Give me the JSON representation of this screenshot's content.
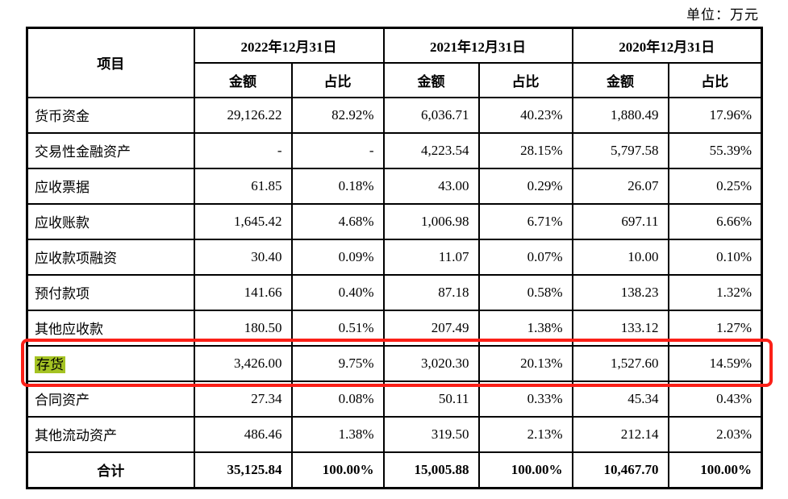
{
  "unit_label": "单位：万元",
  "table": {
    "header": {
      "item_col": "项目",
      "date_groups": [
        {
          "date": "2022年12月31日",
          "amount_label": "金额",
          "ratio_label": "占比"
        },
        {
          "date": "2021年12月31日",
          "amount_label": "金额",
          "ratio_label": "占比"
        },
        {
          "date": "2020年12月31日",
          "amount_label": "金额",
          "ratio_label": "占比"
        }
      ]
    },
    "rows": [
      {
        "item": "货币资金",
        "highlighted": false,
        "total": false,
        "values": [
          "29,126.22",
          "82.92%",
          "6,036.71",
          "40.23%",
          "1,880.49",
          "17.96%"
        ]
      },
      {
        "item": "交易性金融资产",
        "highlighted": false,
        "total": false,
        "values": [
          "-",
          "-",
          "4,223.54",
          "28.15%",
          "5,797.58",
          "55.39%"
        ]
      },
      {
        "item": "应收票据",
        "highlighted": false,
        "total": false,
        "values": [
          "61.85",
          "0.18%",
          "43.00",
          "0.29%",
          "26.07",
          "0.25%"
        ]
      },
      {
        "item": "应收账款",
        "highlighted": false,
        "total": false,
        "values": [
          "1,645.42",
          "4.68%",
          "1,006.98",
          "6.71%",
          "697.11",
          "6.66%"
        ]
      },
      {
        "item": "应收款项融资",
        "highlighted": false,
        "total": false,
        "values": [
          "30.40",
          "0.09%",
          "11.07",
          "0.07%",
          "10.00",
          "0.10%"
        ]
      },
      {
        "item": "预付款项",
        "highlighted": false,
        "total": false,
        "values": [
          "141.66",
          "0.40%",
          "87.18",
          "0.58%",
          "138.23",
          "1.32%"
        ]
      },
      {
        "item": "其他应收款",
        "highlighted": false,
        "total": false,
        "values": [
          "180.50",
          "0.51%",
          "207.49",
          "1.38%",
          "133.12",
          "1.27%"
        ]
      },
      {
        "item": "存货",
        "highlighted": true,
        "total": false,
        "values": [
          "3,426.00",
          "9.75%",
          "3,020.30",
          "20.13%",
          "1,527.60",
          "14.59%"
        ]
      },
      {
        "item": "合同资产",
        "highlighted": false,
        "total": false,
        "values": [
          "27.34",
          "0.08%",
          "50.11",
          "0.33%",
          "45.34",
          "0.43%"
        ]
      },
      {
        "item": "其他流动资产",
        "highlighted": false,
        "total": false,
        "values": [
          "486.46",
          "1.38%",
          "319.50",
          "2.13%",
          "212.14",
          "2.03%"
        ]
      },
      {
        "item": "合计",
        "highlighted": false,
        "total": true,
        "values": [
          "35,125.84",
          "100.00%",
          "15,005.88",
          "100.00%",
          "10,467.70",
          "100.00%"
        ]
      }
    ],
    "highlight_color": "#a5c323",
    "annotation_color": "#fb2018"
  }
}
